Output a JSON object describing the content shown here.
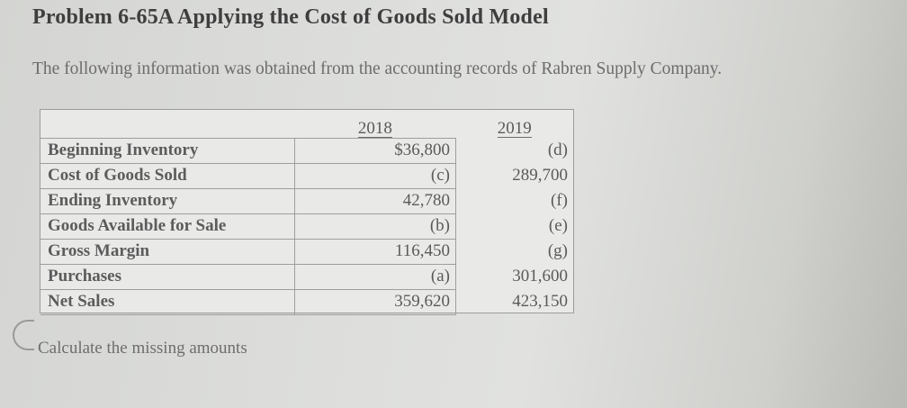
{
  "title": "Problem 6-65A Applying the Cost of Goods Sold Model",
  "intro": "The following information was obtained from the accounting records of Rabren Supply Company.",
  "table": {
    "years": [
      "2018",
      "2019"
    ],
    "rows": [
      {
        "label": "Beginning Inventory",
        "y2018": "$36,800",
        "y2019": "(d)"
      },
      {
        "label": "Cost of Goods Sold",
        "y2018": "(c)",
        "y2019": "289,700"
      },
      {
        "label": "Ending Inventory",
        "y2018": "42,780",
        "y2019": "(f)"
      },
      {
        "label": "Goods Available for Sale",
        "y2018": "(b)",
        "y2019": "(e)"
      },
      {
        "label": "Gross Margin",
        "y2018": "116,450",
        "y2019": "(g)"
      },
      {
        "label": "Purchases",
        "y2018": "(a)",
        "y2019": "301,600"
      },
      {
        "label": "Net Sales",
        "y2018": "359,620",
        "y2019": "423,150"
      }
    ]
  },
  "footer": "Calculate the missing amounts"
}
